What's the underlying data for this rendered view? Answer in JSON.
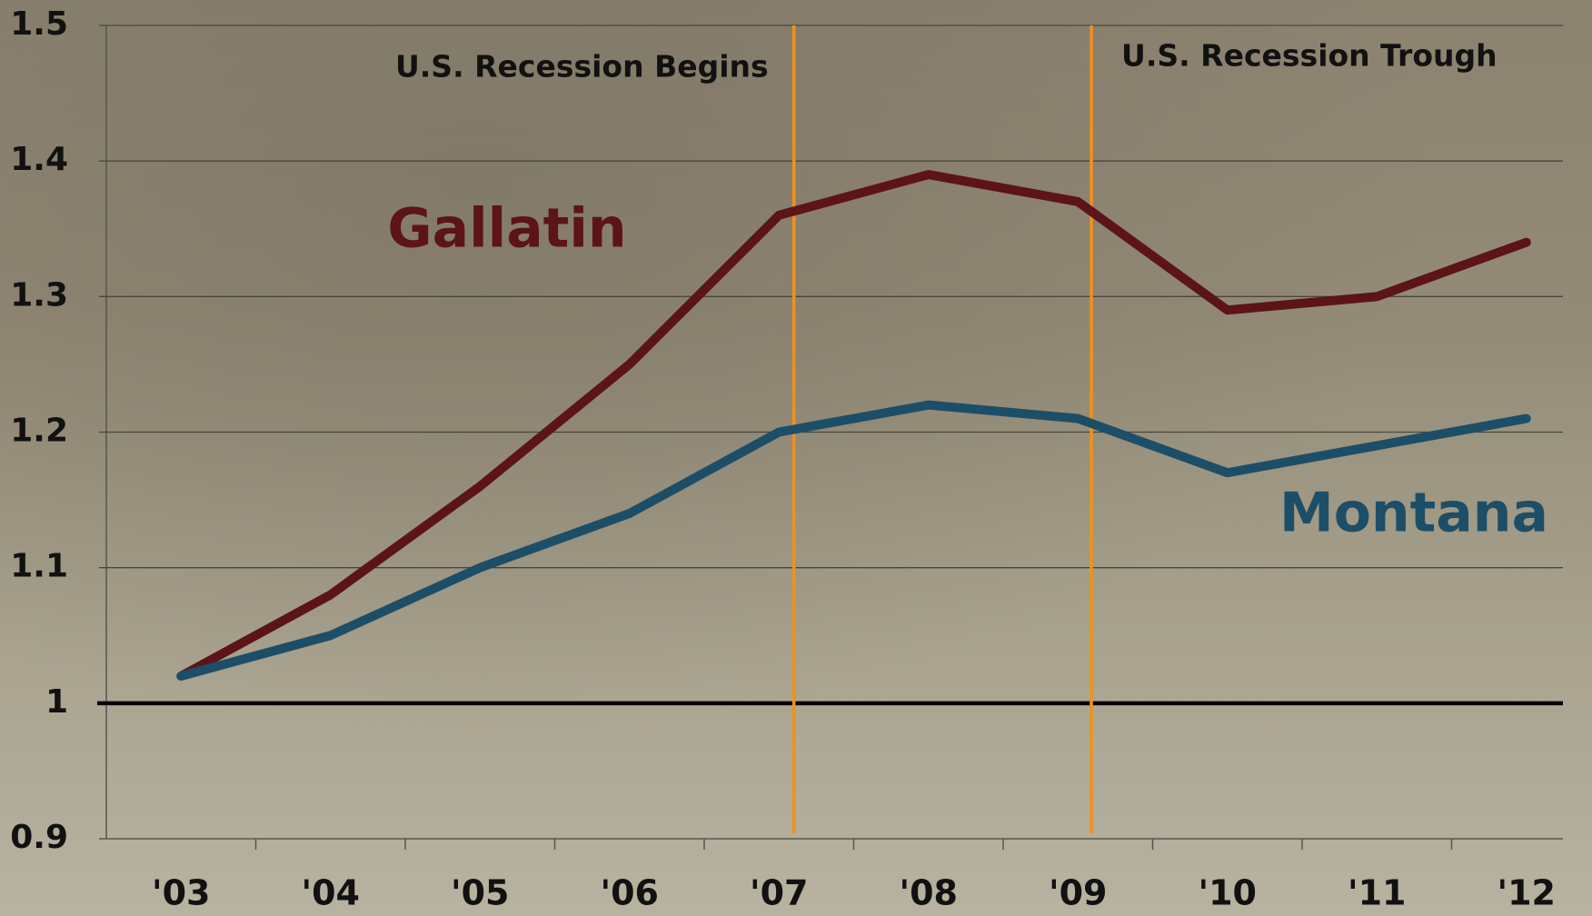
{
  "chart_data": {
    "type": "line",
    "categories": [
      "'03",
      "'04",
      "'05",
      "'06",
      "'07",
      "'08",
      "'09",
      "'10",
      "'11",
      "'12"
    ],
    "series": [
      {
        "name": "Gallatin",
        "color": "#5c1418",
        "values": [
          1.02,
          1.08,
          1.16,
          1.25,
          1.36,
          1.39,
          1.37,
          1.29,
          1.3,
          1.34
        ]
      },
      {
        "name": "Montana",
        "color": "#1d4e68",
        "values": [
          1.02,
          1.05,
          1.1,
          1.14,
          1.2,
          1.22,
          1.21,
          1.17,
          1.19,
          1.21
        ]
      }
    ],
    "ylim": [
      0.9,
      1.5
    ],
    "yticks": [
      0.9,
      1,
      1.1,
      1.2,
      1.3,
      1.4,
      1.5
    ],
    "baseline": 1,
    "grid": true,
    "annotations": [
      {
        "text": "U.S. Recession Begins",
        "x": 4.1,
        "color": "#f39019"
      },
      {
        "text": "U.S. Recession Trough",
        "x": 6.09,
        "color": "#f39019"
      }
    ]
  }
}
